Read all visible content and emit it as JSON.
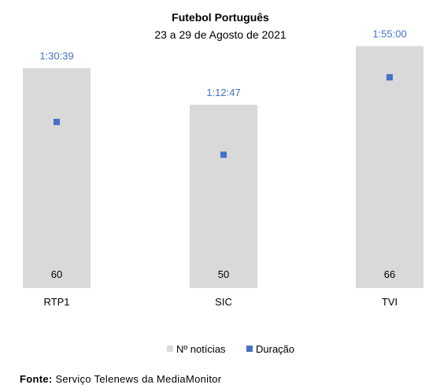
{
  "chart_data": {
    "type": "bar",
    "title": "Futebol Português",
    "subtitle": "23 a 29 de Agosto de 2021",
    "categories": [
      "RTP1",
      "SIC",
      "TVI"
    ],
    "series": [
      {
        "name": "Nº notícias",
        "kind": "bar",
        "color": "#d9d9d9",
        "values": [
          60,
          50,
          66
        ],
        "labels": [
          "60",
          "50",
          "66"
        ]
      },
      {
        "name": "Duração",
        "kind": "marker",
        "color": "#4472c4",
        "values": [
          90.65,
          72.78,
          115.0
        ],
        "labels": [
          "1:30:39",
          "1:12:47",
          "1:55:00"
        ]
      }
    ],
    "ylim_bars": [
      0,
      70
    ],
    "ylim_markers": [
      0,
      140
    ],
    "legend_position": "bottom",
    "grid": false
  },
  "source": {
    "label": "Fonte:",
    "text": "Serviço Telenews da MediaMonitor"
  }
}
